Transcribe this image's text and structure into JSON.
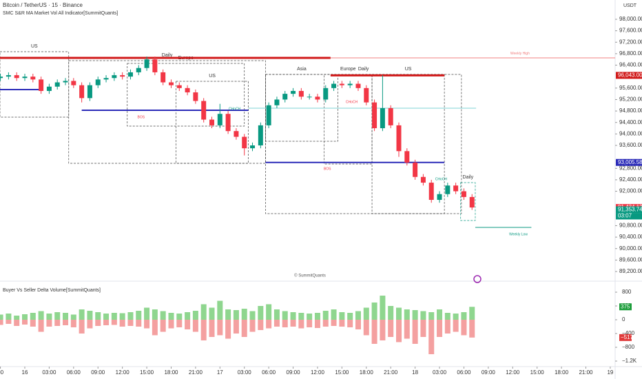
{
  "chart_data": {
    "type": "candlestick",
    "title": "Bitcoin / TetherUS · 15 · Binance",
    "subtitle": "SMC S&R MA Market Vol All Indicator[SummitQuants]",
    "currency": "USDT",
    "watermark": "© SummitQuants",
    "up_color": "#089981",
    "down_color": "#f23645",
    "xlim": [
      -3.05,
      72.6
    ],
    "xticks": [
      {
        "value": -3,
        "label": "00"
      },
      {
        "value": 0,
        "label": "16"
      },
      {
        "value": 3,
        "label": "03:00"
      },
      {
        "value": 6,
        "label": "06:00"
      },
      {
        "value": 9,
        "label": "09:00"
      },
      {
        "value": 12,
        "label": "12:00"
      },
      {
        "value": 15,
        "label": "15:00"
      },
      {
        "value": 18,
        "label": "18:00"
      },
      {
        "value": 21,
        "label": "21:00"
      },
      {
        "value": 24,
        "label": "17"
      },
      {
        "value": 27,
        "label": "03:00"
      },
      {
        "value": 30,
        "label": "06:00"
      },
      {
        "value": 33,
        "label": "09:00"
      },
      {
        "value": 36,
        "label": "12:00"
      },
      {
        "value": 39,
        "label": "15:00"
      },
      {
        "value": 42,
        "label": "18:00"
      },
      {
        "value": 45,
        "label": "21:00"
      },
      {
        "value": 48,
        "label": "18"
      },
      {
        "value": 51,
        "label": "03:00"
      },
      {
        "value": 54,
        "label": "06:00"
      },
      {
        "value": 57,
        "label": "09:00"
      },
      {
        "value": 60,
        "label": "12:00"
      },
      {
        "value": 63,
        "label": "15:00"
      },
      {
        "value": 66,
        "label": "18:00"
      },
      {
        "value": 69,
        "label": "21:00"
      },
      {
        "value": 72,
        "label": "19"
      }
    ],
    "ylim": [
      88936,
      98673
    ],
    "yticks": [
      {
        "value": 98000,
        "label": "98,000.00"
      },
      {
        "value": 97600,
        "label": "97,600.00"
      },
      {
        "value": 97200,
        "label": "97,200.00"
      },
      {
        "value": 96800,
        "label": "96,800.00"
      },
      {
        "value": 96400,
        "label": "96,400.00"
      },
      {
        "value": 95600,
        "label": "95,600.00"
      },
      {
        "value": 95200,
        "label": "95,200.00"
      },
      {
        "value": 94800,
        "label": "94,800.00"
      },
      {
        "value": 94400,
        "label": "94,400.00"
      },
      {
        "value": 94000,
        "label": "94,000.00"
      },
      {
        "value": 93600,
        "label": "93,600.00"
      },
      {
        "value": 92800,
        "label": "92,800.00"
      },
      {
        "value": 92400,
        "label": "92,400.00"
      },
      {
        "value": 92000,
        "label": "92,000.00"
      },
      {
        "value": 90800,
        "label": "90,800.00"
      },
      {
        "value": 90400,
        "label": "90,400.00"
      },
      {
        "value": 90000,
        "label": "90,000.00"
      },
      {
        "value": 89600,
        "label": "89,600.00"
      },
      {
        "value": 89200,
        "label": "89,200.00"
      }
    ],
    "x": [
      -3,
      -2,
      -1,
      0,
      1,
      2,
      3,
      4,
      5,
      6,
      7,
      8,
      9,
      10,
      11,
      12,
      13,
      14,
      15,
      16,
      17,
      18,
      19,
      20,
      21,
      22,
      23,
      24,
      25,
      26,
      27,
      28,
      29,
      30,
      31,
      32,
      33,
      34,
      35,
      36,
      37,
      38,
      39,
      40,
      41,
      42,
      43,
      44,
      45,
      46,
      47,
      48,
      49,
      50,
      51,
      52,
      53,
      54,
      55
    ],
    "open": [
      95950,
      96000,
      96050,
      95950,
      96000,
      95900,
      95500,
      95650,
      95800,
      95850,
      95700,
      95250,
      95700,
      95900,
      95950,
      96050,
      96000,
      96150,
      96300,
      96600,
      96150,
      95800,
      95700,
      95600,
      95450,
      95150,
      94500,
      94300,
      94700,
      94100,
      93900,
      93500,
      93600,
      94300,
      95000,
      95200,
      95400,
      95500,
      95300,
      95300,
      95200,
      95600,
      95750,
      95700,
      95750,
      95600,
      95100,
      94200,
      94900,
      94300,
      93400,
      93000,
      92500,
      92300,
      91700,
      91900,
      92200,
      92000,
      91800
    ],
    "high": [
      96100,
      96150,
      96150,
      96100,
      96100,
      96000,
      95750,
      95900,
      95950,
      95950,
      95800,
      95800,
      96000,
      96050,
      96150,
      96150,
      96250,
      96400,
      96700,
      96700,
      96250,
      95900,
      95800,
      95700,
      95550,
      95250,
      94600,
      95050,
      94800,
      94200,
      94000,
      93700,
      94400,
      95100,
      95300,
      95500,
      95600,
      95600,
      95400,
      95400,
      95700,
      95850,
      95850,
      95850,
      95850,
      95700,
      95200,
      96050,
      95000,
      94400,
      93500,
      93100,
      92600,
      92400,
      92000,
      92300,
      92300,
      92100,
      91900
    ],
    "low": [
      95850,
      95900,
      95850,
      95850,
      95800,
      95400,
      95400,
      95550,
      95700,
      95600,
      95100,
      95150,
      95600,
      95800,
      95850,
      95900,
      95900,
      96050,
      96200,
      96050,
      95700,
      95600,
      95500,
      95350,
      95050,
      94400,
      94200,
      94200,
      94000,
      93800,
      93250,
      93400,
      93500,
      94200,
      94900,
      95100,
      95300,
      95200,
      95200,
      95100,
      95100,
      95500,
      95600,
      95600,
      95500,
      95000,
      94100,
      94100,
      94200,
      93200,
      92900,
      92400,
      92200,
      91600,
      91600,
      91800,
      91900,
      91700,
      91350
    ],
    "close": [
      96000,
      96050,
      95950,
      96000,
      95900,
      95500,
      95650,
      95800,
      95850,
      95700,
      95250,
      95700,
      95900,
      95950,
      96050,
      96000,
      96150,
      96300,
      96600,
      96150,
      95800,
      95700,
      95600,
      95450,
      95150,
      94500,
      94300,
      94700,
      94100,
      93900,
      93500,
      93600,
      94300,
      95000,
      95200,
      95400,
      95500,
      95300,
      95300,
      95200,
      95600,
      95750,
      95700,
      95750,
      95600,
      95100,
      94200,
      94900,
      94300,
      93400,
      93000,
      92500,
      92300,
      91700,
      91900,
      92200,
      92000,
      91800,
      91434
    ],
    "sessions": [
      {
        "label": "US",
        "x": [
          -3.05,
          5.4
        ],
        "y": [
          94586,
          96870
        ],
        "color": "#444444"
      },
      {
        "label": "Europe",
        "x": [
          12.6,
          27
        ],
        "y": [
          94273,
          96461
        ],
        "color": "#444444"
      },
      {
        "label": "Daily",
        "x": [
          5.4,
          29.6
        ],
        "y": [
          92975,
          96557
        ],
        "color": "#444444"
      },
      {
        "label": "US",
        "x": [
          18.6,
          27.5
        ],
        "y": [
          92975,
          95836
        ],
        "color": "#444444"
      },
      {
        "label": "Asia",
        "x": [
          29.6,
          38.5
        ],
        "y": [
          93744,
          96077
        ],
        "color": "#444444"
      },
      {
        "label": "Europe",
        "x": [
          36.8,
          42.7
        ],
        "y": [
          92951,
          96077
        ],
        "color": "#444444"
      },
      {
        "label": "Daily",
        "x": [
          29.6,
          53.7
        ],
        "y": [
          91220,
          96077
        ],
        "color": "#444444"
      },
      {
        "label": "US",
        "x": [
          42.7,
          51.6
        ],
        "y": [
          91220,
          96077
        ],
        "color": "#444444"
      },
      {
        "label": "Daily",
        "x": [
          53.6,
          55.4
        ],
        "y": [
          90979,
          92302
        ],
        "color": "#089981"
      }
    ],
    "levels": [
      {
        "value": 96654,
        "x": [
          -3.05,
          37.6
        ],
        "color": "#d11a1a",
        "width": 3
      },
      {
        "value": 96654,
        "x": [
          37.6,
          72.6
        ],
        "color": "#f08080",
        "width": 1
      },
      {
        "value": 96043,
        "x": [
          37.6,
          51.6
        ],
        "color": "#d11a1a",
        "width": 3
      },
      {
        "value": 95548,
        "x": [
          -3.05,
          2
        ],
        "color": "#2a2ab8",
        "width": 2
      },
      {
        "value": 94826,
        "x": [
          7,
          27.5
        ],
        "color": "#2a2ab8",
        "width": 2
      },
      {
        "value": 94898,
        "x": [
          27.5,
          55.5
        ],
        "color": "#7fd3d6",
        "width": 1
      },
      {
        "value": 93005,
        "x": [
          29.6,
          51.6
        ],
        "color": "#2a2ab8",
        "width": 2
      },
      {
        "value": 90739,
        "x": [
          55.4,
          62.3
        ],
        "color": "#089981",
        "width": 1
      }
    ],
    "annotations": [
      {
        "text": "BOS",
        "x": 14.3,
        "y": 94586,
        "color": "#f23645"
      },
      {
        "text": "BOS",
        "x": 37.2,
        "y": 92783,
        "color": "#f23645"
      },
      {
        "text": "CHoCH",
        "x": 25.8,
        "y": 94874,
        "color": "#089981"
      },
      {
        "text": "CHoCH",
        "x": 40.2,
        "y": 95115,
        "color": "#f23645"
      },
      {
        "text": "CHoCH",
        "x": 51.2,
        "y": 92422,
        "color": "#089981"
      },
      {
        "text": "Weekly High",
        "x": 60.9,
        "y": 96800,
        "color": "#f08080"
      },
      {
        "text": "Weekly Low",
        "x": 60.7,
        "y": 90500,
        "color": "#089981"
      }
    ],
    "price_labels": [
      {
        "value": 96043,
        "label": "96,043.00",
        "color": "#d11a1a"
      },
      {
        "value": 93005.58,
        "label": "93,005.58",
        "color": "#2a2ab8"
      },
      {
        "value": 91434.12,
        "label": "91,434.12",
        "color": "#f23645"
      },
      {
        "value": 91353.74,
        "label": "91,353.74",
        "color": "#089981"
      }
    ],
    "countdown": "03:07",
    "delta": {
      "title": "Buyer Vs Seller Delta Volume[SummitQuants]",
      "ylim": [
        -1360,
        1080
      ],
      "yticks": [
        800,
        400,
        0,
        {
          "value": -400,
          "label": "−400"
        },
        {
          "value": -800,
          "label": "−800"
        },
        {
          "value": -1200,
          "label": "−1.2K"
        }
      ],
      "buy": {
        "color": "#8fd68f",
        "values": [
          150,
          180,
          120,
          160,
          200,
          250,
          180,
          220,
          200,
          150,
          300,
          260,
          220,
          180,
          200,
          190,
          220,
          260,
          350,
          300,
          250,
          200,
          180,
          220,
          260,
          450,
          350,
          550,
          300,
          280,
          320,
          250,
          400,
          450,
          300,
          250,
          220,
          200,
          180,
          200,
          260,
          300,
          220,
          200,
          250,
          350,
          500,
          700,
          400,
          350,
          300,
          280,
          250,
          220,
          300,
          200,
          180,
          220,
          375
        ]
      },
      "sell": {
        "color": "#f4a0a0",
        "values": [
          -150,
          -120,
          -180,
          -140,
          -200,
          -350,
          -200,
          -180,
          -160,
          -220,
          -400,
          -250,
          -180,
          -160,
          -150,
          -200,
          -180,
          -200,
          -250,
          -450,
          -350,
          -250,
          -220,
          -280,
          -350,
          -600,
          -500,
          -450,
          -550,
          -400,
          -500,
          -350,
          -300,
          -250,
          -200,
          -220,
          -200,
          -250,
          -220,
          -240,
          -200,
          -180,
          -200,
          -220,
          -280,
          -450,
          -700,
          -600,
          -500,
          -650,
          -550,
          -700,
          -500,
          -1000,
          -500,
          -400,
          -350,
          -450,
          -517
        ]
      },
      "last_labels": [
        {
          "value": 375,
          "label": "375",
          "color": "#1e9e3c"
        },
        {
          "value": -517,
          "label": "−517",
          "color": "#e03a3a"
        }
      ]
    }
  }
}
